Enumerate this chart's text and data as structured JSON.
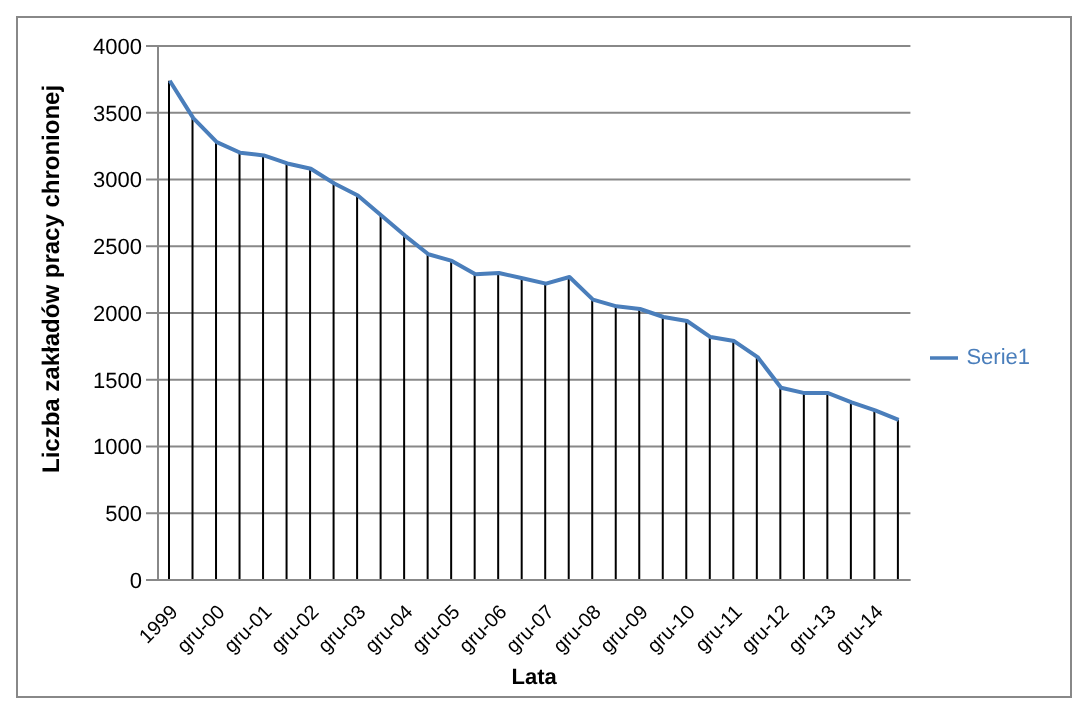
{
  "chart_data": {
    "type": "line",
    "xlabel": "Lata",
    "ylabel": "Liczba zakładów pracy chronionej",
    "categories": [
      "1999",
      null,
      "gru-00",
      null,
      "gru-01",
      null,
      "gru-02",
      null,
      "gru-03",
      null,
      "gru-04",
      null,
      "gru-05",
      null,
      "gru-06",
      null,
      "gru-07",
      null,
      "gru-08",
      null,
      "gru-09",
      null,
      "gru-10",
      null,
      "gru-11",
      null,
      "gru-12",
      null,
      "gru-13",
      null,
      "gru-14",
      null
    ],
    "series": [
      {
        "type": "bar",
        "color": "#000000",
        "values": [
          3740,
          3460,
          3280,
          3200,
          3180,
          3120,
          3080,
          2970,
          2880,
          2730,
          2580,
          2440,
          2390,
          2290,
          2300,
          2260,
          2220,
          2270,
          2100,
          2050,
          2030,
          1970,
          1940,
          1820,
          1790,
          1670,
          1440,
          1400,
          1400,
          1330,
          1270,
          1200
        ]
      },
      {
        "name": "Serie1",
        "color": "#4a7ebb",
        "values": [
          3740,
          3460,
          3280,
          3200,
          3180,
          3120,
          3080,
          2970,
          2880,
          2730,
          2580,
          2440,
          2390,
          2290,
          2300,
          2260,
          2220,
          2270,
          2100,
          2050,
          2030,
          1970,
          1940,
          1820,
          1790,
          1670,
          1440,
          1400,
          1400,
          1330,
          1270,
          1200
        ]
      }
    ],
    "ylim": [
      0,
      4000
    ],
    "yticks": [
      0,
      500,
      1000,
      1500,
      2000,
      2500,
      3000,
      3500,
      4000
    ],
    "grid": "y",
    "legend": "right"
  }
}
